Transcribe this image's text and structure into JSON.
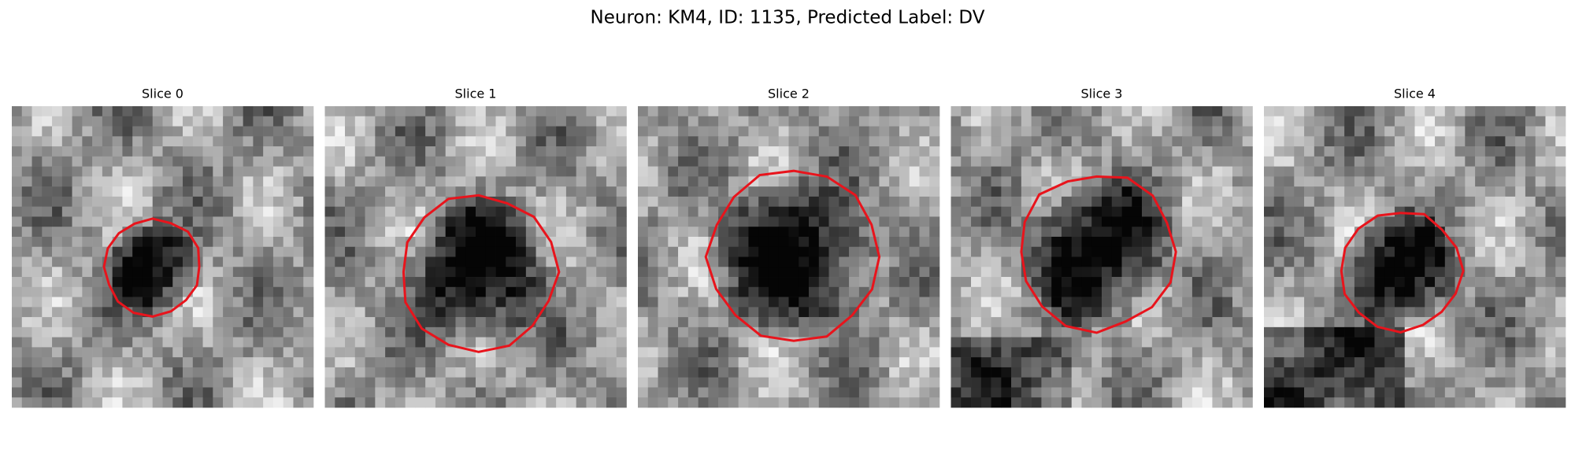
{
  "header": {
    "title": "Neuron: KM4, ID: 1135, Predicted Label: DV"
  },
  "panels": [
    {
      "title": "Slice 0"
    },
    {
      "title": "Slice 1"
    },
    {
      "title": "Slice 2"
    },
    {
      "title": "Slice 3"
    },
    {
      "title": "Slice 4"
    }
  ]
}
